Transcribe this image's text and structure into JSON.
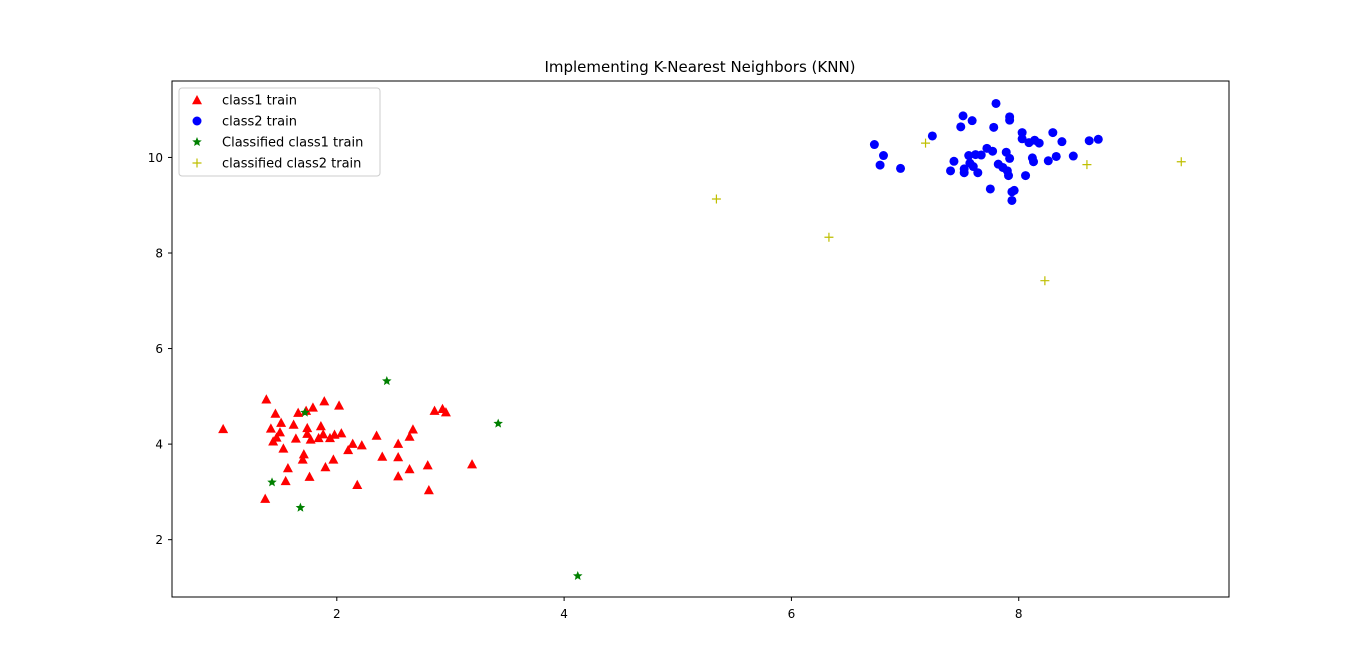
{
  "chart_data": {
    "type": "scatter",
    "title": "Implementing K-Nearest Neighbors (KNN)",
    "xlabel": "",
    "ylabel": "",
    "xlim": [
      0.55,
      9.85
    ],
    "ylim": [
      0.8,
      11.6
    ],
    "xticks": [
      2,
      4,
      6,
      8
    ],
    "yticks": [
      2,
      4,
      6,
      8,
      10
    ],
    "grid": false,
    "legend_position": "top-left",
    "series": [
      {
        "name": "class1 train",
        "marker": "triangle",
        "color": "#ff0000",
        "points": [
          [
            1.0,
            4.32
          ],
          [
            1.38,
            4.94
          ],
          [
            1.37,
            2.86
          ],
          [
            1.42,
            4.33
          ],
          [
            1.44,
            4.06
          ],
          [
            1.46,
            4.64
          ],
          [
            1.47,
            4.14
          ],
          [
            1.5,
            4.25
          ],
          [
            1.51,
            4.45
          ],
          [
            1.53,
            3.91
          ],
          [
            1.55,
            3.23
          ],
          [
            1.57,
            3.5
          ],
          [
            1.62,
            4.41
          ],
          [
            1.64,
            4.12
          ],
          [
            1.66,
            4.66
          ],
          [
            1.7,
            3.68
          ],
          [
            1.71,
            3.79
          ],
          [
            1.73,
            4.7
          ],
          [
            1.74,
            4.22
          ],
          [
            1.74,
            4.34
          ],
          [
            1.76,
            3.32
          ],
          [
            1.77,
            4.1
          ],
          [
            1.79,
            4.77
          ],
          [
            1.84,
            4.13
          ],
          [
            1.86,
            4.38
          ],
          [
            1.88,
            4.21
          ],
          [
            1.89,
            4.9
          ],
          [
            1.9,
            3.52
          ],
          [
            1.94,
            4.13
          ],
          [
            1.97,
            3.68
          ],
          [
            1.98,
            4.2
          ],
          [
            2.02,
            4.81
          ],
          [
            2.04,
            4.23
          ],
          [
            2.1,
            3.88
          ],
          [
            2.14,
            4.01
          ],
          [
            2.18,
            3.15
          ],
          [
            2.22,
            3.98
          ],
          [
            2.35,
            4.18
          ],
          [
            2.4,
            3.74
          ],
          [
            2.54,
            4.01
          ],
          [
            2.54,
            3.73
          ],
          [
            2.54,
            3.33
          ],
          [
            2.64,
            4.16
          ],
          [
            2.64,
            3.48
          ],
          [
            2.67,
            4.31
          ],
          [
            2.8,
            3.56
          ],
          [
            2.81,
            3.04
          ],
          [
            2.86,
            4.7
          ],
          [
            2.93,
            4.74
          ],
          [
            2.96,
            4.67
          ],
          [
            3.19,
            3.58
          ]
        ]
      },
      {
        "name": "class2 train",
        "marker": "circle",
        "color": "#0000ff",
        "points": [
          [
            6.73,
            10.27
          ],
          [
            6.78,
            9.84
          ],
          [
            6.81,
            10.04
          ],
          [
            6.96,
            9.77
          ],
          [
            7.24,
            10.45
          ],
          [
            7.4,
            9.72
          ],
          [
            7.43,
            9.92
          ],
          [
            7.49,
            10.64
          ],
          [
            7.51,
            10.87
          ],
          [
            7.52,
            9.76
          ],
          [
            7.52,
            9.68
          ],
          [
            7.56,
            10.04
          ],
          [
            7.57,
            9.88
          ],
          [
            7.59,
            10.77
          ],
          [
            7.6,
            9.81
          ],
          [
            7.62,
            10.06
          ],
          [
            7.64,
            9.68
          ],
          [
            7.67,
            10.05
          ],
          [
            7.72,
            10.19
          ],
          [
            7.75,
            9.34
          ],
          [
            7.77,
            10.13
          ],
          [
            7.78,
            10.63
          ],
          [
            7.8,
            11.13
          ],
          [
            7.82,
            9.86
          ],
          [
            7.86,
            9.79
          ],
          [
            7.89,
            10.11
          ],
          [
            7.9,
            9.72
          ],
          [
            7.91,
            9.62
          ],
          [
            7.92,
            10.85
          ],
          [
            7.92,
            10.78
          ],
          [
            7.92,
            9.98
          ],
          [
            7.94,
            9.1
          ],
          [
            7.94,
            9.28
          ],
          [
            7.96,
            9.31
          ],
          [
            8.03,
            10.52
          ],
          [
            8.03,
            10.39
          ],
          [
            8.06,
            9.62
          ],
          [
            8.09,
            10.31
          ],
          [
            8.12,
            9.99
          ],
          [
            8.13,
            9.91
          ],
          [
            8.14,
            10.36
          ],
          [
            8.18,
            10.3
          ],
          [
            8.26,
            9.93
          ],
          [
            8.3,
            10.52
          ],
          [
            8.33,
            10.02
          ],
          [
            8.38,
            10.33
          ],
          [
            8.48,
            10.03
          ],
          [
            8.62,
            10.35
          ],
          [
            8.7,
            10.38
          ]
        ]
      },
      {
        "name": "Classified class1 train",
        "marker": "star",
        "color": "#008000",
        "points": [
          [
            1.43,
            3.2
          ],
          [
            1.68,
            2.67
          ],
          [
            1.72,
            4.66
          ],
          [
            2.44,
            5.32
          ],
          [
            3.42,
            4.43
          ],
          [
            4.12,
            1.24
          ]
        ]
      },
      {
        "name": "classified class2 train",
        "marker": "plus",
        "color": "#bfbf00",
        "points": [
          [
            5.34,
            9.13
          ],
          [
            6.33,
            8.33
          ],
          [
            7.18,
            10.3
          ],
          [
            8.23,
            7.42
          ],
          [
            8.6,
            9.85
          ],
          [
            9.43,
            9.91
          ]
        ]
      }
    ]
  }
}
